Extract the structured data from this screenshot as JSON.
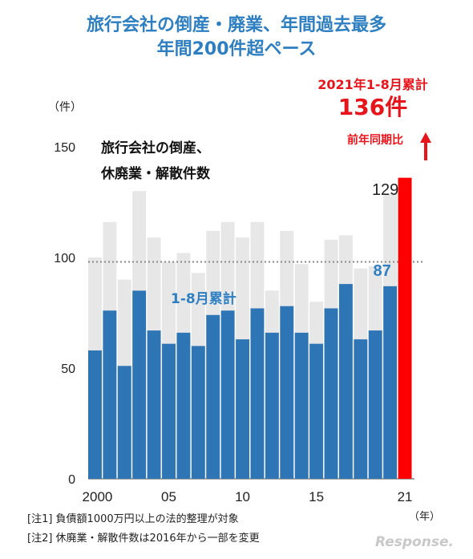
{
  "title": {
    "line1": "旅行会社の倒産・廃業、年間過去最多",
    "line2": "年間200件超ペース"
  },
  "headline": {
    "period": "2021年1-8月累計",
    "value": "136件",
    "compare": "前年同期比"
  },
  "notes": {
    "note1": "[注1] 負債額1000万円以上の法的整理が対象",
    "note2": "[注2] 休廃業・解散件数は2016年から一部を変更"
  },
  "brand": "Response.",
  "colors": {
    "accent": "#2e7fc2",
    "bar_partial": "#2e75b6",
    "bar_full": "#e7e7e7",
    "highlight": "#ff0000",
    "text_red": "#e8141b"
  },
  "chart_data": {
    "type": "bar",
    "subtitle_line1": "旅行会社の倒産、",
    "subtitle_line2": "休廃業・解散件数",
    "y_unit": "（件）",
    "x_unit": "（年）",
    "ylim": [
      0,
      150
    ],
    "y_ticks": [
      0,
      50,
      100,
      150
    ],
    "reference_line": 98,
    "x_tick_labels": [
      {
        "year": 2000,
        "label": "2000"
      },
      {
        "year": 2005,
        "label": "05"
      },
      {
        "year": 2010,
        "label": "10"
      },
      {
        "year": 2015,
        "label": "15"
      },
      {
        "year": 2021,
        "label": "21"
      }
    ],
    "series_label": "1-8月累計",
    "categories": [
      2000,
      2001,
      2002,
      2003,
      2004,
      2005,
      2006,
      2007,
      2008,
      2009,
      2010,
      2011,
      2012,
      2013,
      2014,
      2015,
      2016,
      2017,
      2018,
      2019,
      2020,
      2021
    ],
    "series": [
      {
        "role": "full_year",
        "values": [
          100,
          116,
          90,
          130,
          109,
          98,
          102,
          93,
          112,
          116,
          109,
          116,
          85,
          112,
          97,
          80,
          108,
          110,
          95,
          96,
          129,
          null
        ]
      },
      {
        "role": "jan_aug",
        "values": [
          58,
          76,
          51,
          85,
          67,
          61,
          66,
          60,
          74,
          76,
          63,
          77,
          66,
          78,
          66,
          61,
          77,
          88,
          63,
          67,
          87,
          136
        ]
      }
    ],
    "data_labels": [
      {
        "year": 2020,
        "text": "129",
        "role": "full_year"
      },
      {
        "year": 2020,
        "text": "87",
        "role": "jan_aug"
      }
    ]
  }
}
